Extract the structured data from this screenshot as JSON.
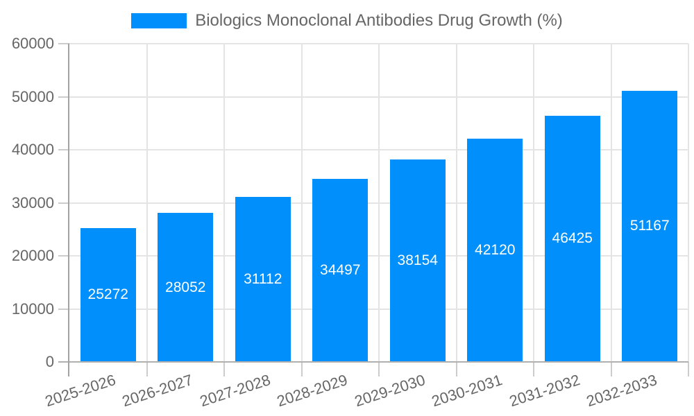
{
  "legend": {
    "position": "top",
    "items": [
      {
        "label": "Biologics Monoclonal Antibodies Drug Growth (%)",
        "color": "#008FFB"
      }
    ]
  },
  "chart_data": {
    "type": "bar",
    "title": "Biologics Monoclonal Antibodies Drug Growth (%)",
    "categories": [
      "2025-2026",
      "2026-2027",
      "2027-2028",
      "2028-2029",
      "2029-2030",
      "2030-2031",
      "2031-2032",
      "2032-2033"
    ],
    "series": [
      {
        "name": "Biologics Monoclonal Antibodies Drug Growth (%)",
        "values": [
          25272,
          28052,
          31112,
          34497,
          38154,
          42120,
          46425,
          51167
        ]
      }
    ],
    "value_labels": [
      "25272",
      "28052",
      "31112",
      "34497",
      "38154",
      "42120",
      "46425",
      "51167"
    ],
    "xlabel": "",
    "ylabel": "",
    "ylim": [
      0,
      60000
    ],
    "ytick_step": 10000,
    "yticks": [
      "0",
      "10000",
      "20000",
      "30000",
      "40000",
      "50000",
      "60000"
    ],
    "grid": true,
    "x_label_rotation_deg": -18,
    "legend_position": "top",
    "colors": {
      "bar": "#008FFB",
      "grid_line": "#e4e4e4",
      "axis_line": "#b0b0b0",
      "y_axis_line": "#a3a3a3",
      "tick_mark": "#cccccc",
      "axis_text": "#666666",
      "value_text": "#ffffff",
      "background": "#ffffff"
    }
  }
}
